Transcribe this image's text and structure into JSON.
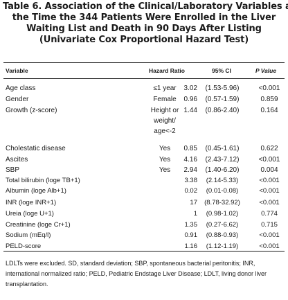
{
  "title": {
    "lines": [
      "Table 6. Association of the Clinical/Laboratory Variables at",
      "the Time the 344 Patients Were Enrolled in the Liver",
      "Waiting List and Death in 90 Days After Listing",
      "(Univariate Cox Proportional Hazard Test)"
    ]
  },
  "headers": {
    "variable": "Variable",
    "hazard_ratio": "Hazard Ratio",
    "ci": "95% CI",
    "p_value": "P Value"
  },
  "rows": [
    {
      "variable": "Age class",
      "category": "≤1 year",
      "hr": "3.02",
      "ci": "(1.53-5.96)",
      "p": "<0.001"
    },
    {
      "variable": "Gender",
      "category": "Female",
      "hr": "0.96",
      "ci": "(0.57-1.59)",
      "p": "0.859"
    },
    {
      "variable": "Growth (z-score)",
      "category": "Height or",
      "hr": "1.44",
      "ci": "(0.86-2.40)",
      "p": "0.164"
    },
    {
      "variable": "",
      "category": "weight/",
      "hr": "",
      "ci": "",
      "p": ""
    },
    {
      "variable": "",
      "category": "age<-2",
      "hr": "",
      "ci": "",
      "p": ""
    },
    {
      "variable": "Cholestatic disease",
      "category": "Yes",
      "hr": "0.85",
      "ci": "(0.45-1.61)",
      "p": "0.622"
    },
    {
      "variable": "Ascites",
      "category": "Yes",
      "hr": "4.16",
      "ci": "(2.43-7.12)",
      "p": "<0.001"
    },
    {
      "variable": "SBP",
      "category": "Yes",
      "hr": "2.94",
      "ci": "(1.40-6.20)",
      "p": "0.004"
    },
    {
      "variable": "Total bilirubin (loge TB+1)",
      "category": "",
      "hr": "3.38",
      "ci": "(2.14-5.33)",
      "p": "<0.001"
    },
    {
      "variable": "Albumin (loge Alb+1)",
      "category": "",
      "hr": "0.02",
      "ci": "(0.01-0.08)",
      "p": "<0.001"
    },
    {
      "variable": "INR (loge INR+1)",
      "category": "",
      "hr": "17",
      "ci": "(8.78-32.92)",
      "p": "<0.001"
    },
    {
      "variable": "Ureia (loge U+1)",
      "category": "",
      "hr": "1",
      "ci": "(0.98-1.02)",
      "p": "0.774"
    },
    {
      "variable": "Creatinine (loge Cr+1)",
      "category": "",
      "hr": "1.35",
      "ci": "(0.27-6.62)",
      "p": "0.715"
    },
    {
      "variable": "Sodium (mEq/l)",
      "category": "",
      "hr": "0.91",
      "ci": "(0.88-0.93)",
      "p": "<0.001"
    },
    {
      "variable": "PELD-score",
      "category": "",
      "hr": "1.16",
      "ci": "(1.12-1.19)",
      "p": "<0.001"
    }
  ],
  "footnote": "LDLTs were excluded. SD, standard deviation; SBP, spontaneous bacterial peritonitis; INR, international normalized ratio; PELD, Pediatric Endstage Liver Disease; LDLT, living donor liver transplantation."
}
